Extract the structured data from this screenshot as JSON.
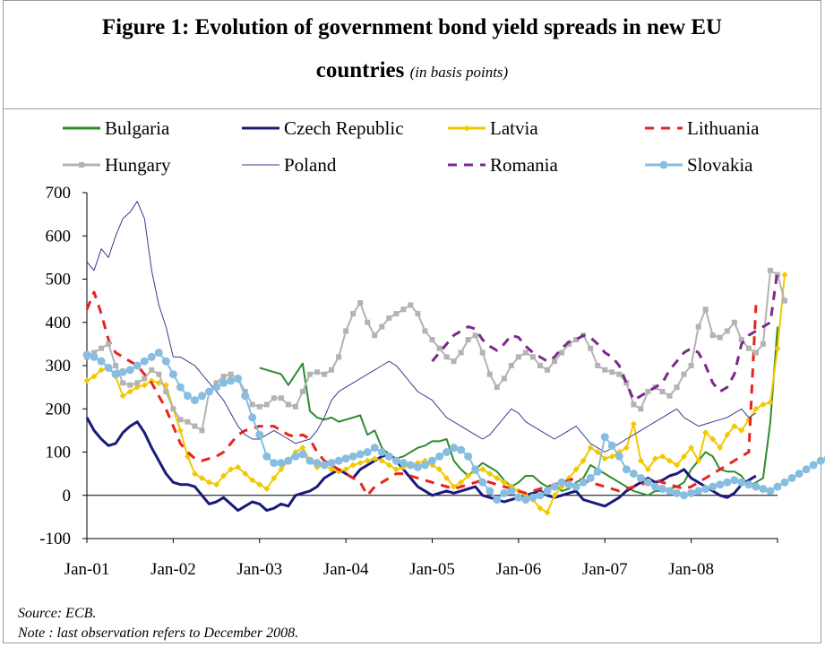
{
  "title": {
    "line1": "Figure 1: Evolution of government bond yield spreads in new EU",
    "line2_bold": "countries",
    "line2_sub": "(in basis points)"
  },
  "footnotes": {
    "source": "Source: ECB.",
    "note": "Note : last observation refers to December 2008."
  },
  "chart_data": {
    "type": "line",
    "title": "Evolution of government bond yield spreads in new EU countries",
    "ylabel": "",
    "xlabel": "",
    "ylim": [
      -100,
      700
    ],
    "yticks": [
      -100,
      0,
      100,
      200,
      300,
      400,
      500,
      600,
      700
    ],
    "x_tick_labels": [
      "Jan-01",
      "Jan-02",
      "Jan-03",
      "Jan-04",
      "Jan-05",
      "Jan-06",
      "Jan-07",
      "Jan-08"
    ],
    "x_start": "Jan-01",
    "frequency": "monthly",
    "legend_position": "top",
    "series": [
      {
        "name": "Bulgaria",
        "color": "#2e8b2e",
        "style": "solid",
        "width": 2,
        "marker": "none",
        "start_index": 24,
        "values": [
          295,
          290,
          285,
          280,
          255,
          280,
          305,
          195,
          180,
          175,
          180,
          170,
          175,
          180,
          185,
          140,
          150,
          110,
          95,
          85,
          90,
          100,
          110,
          115,
          125,
          125,
          130,
          80,
          60,
          45,
          60,
          75,
          65,
          55,
          35,
          20,
          30,
          45,
          45,
          30,
          20,
          25,
          10,
          15,
          30,
          40,
          70,
          60,
          50,
          40,
          30,
          20,
          10,
          5,
          0,
          10,
          10,
          15,
          20,
          30,
          60,
          80,
          100,
          90,
          60,
          55,
          55,
          45,
          20,
          30,
          40,
          170,
          390
        ]
      },
      {
        "name": "Czech Republic",
        "color": "#1a1a7a",
        "style": "solid",
        "width": 3,
        "marker": "none",
        "start_index": 0,
        "values": [
          180,
          150,
          130,
          115,
          120,
          145,
          160,
          170,
          145,
          110,
          80,
          50,
          30,
          25,
          25,
          20,
          0,
          -20,
          -15,
          -5,
          -20,
          -35,
          -25,
          -15,
          -20,
          -35,
          -30,
          -20,
          -25,
          0,
          5,
          10,
          20,
          40,
          50,
          60,
          50,
          40,
          60,
          70,
          80,
          90,
          95,
          80,
          60,
          40,
          20,
          10,
          0,
          5,
          10,
          5,
          10,
          15,
          20,
          0,
          -5,
          -10,
          -15,
          -10,
          -5,
          0,
          5,
          10,
          0,
          -5,
          0,
          5,
          10,
          -10,
          -15,
          -20,
          -25,
          -15,
          -5,
          10,
          20,
          30,
          40,
          30,
          35,
          45,
          50,
          60,
          40,
          30,
          20,
          10,
          0,
          -5,
          5,
          25,
          35,
          45
        ]
      },
      {
        "name": "Latvia",
        "color": "#f2c800",
        "style": "solid",
        "width": 2,
        "marker": "diamond",
        "start_index": 0,
        "values": [
          265,
          275,
          290,
          295,
          275,
          230,
          240,
          250,
          255,
          265,
          260,
          255,
          200,
          150,
          90,
          50,
          40,
          30,
          25,
          45,
          60,
          65,
          50,
          35,
          25,
          15,
          40,
          60,
          80,
          100,
          110,
          80,
          65,
          70,
          60,
          55,
          60,
          70,
          75,
          80,
          85,
          80,
          70,
          60,
          65,
          70,
          75,
          80,
          70,
          60,
          40,
          20,
          30,
          45,
          55,
          60,
          50,
          40,
          30,
          20,
          10,
          0,
          -10,
          -30,
          -40,
          0,
          20,
          40,
          60,
          80,
          110,
          100,
          85,
          90,
          100,
          110,
          165,
          80,
          60,
          85,
          90,
          80,
          70,
          90,
          110,
          80,
          145,
          130,
          110,
          140,
          160,
          150,
          175,
          200,
          210,
          215,
          340,
          510
        ]
      },
      {
        "name": "Lithuania",
        "color": "#e8231f",
        "style": "dashed",
        "width": 3,
        "marker": "none",
        "start_index": 0,
        "values": [
          430,
          470,
          420,
          360,
          330,
          320,
          310,
          300,
          280,
          260,
          230,
          200,
          160,
          120,
          100,
          85,
          80,
          85,
          90,
          100,
          120,
          140,
          150,
          155,
          160,
          160,
          160,
          150,
          140,
          135,
          140,
          130,
          100,
          80,
          70,
          60,
          50,
          40,
          30,
          0,
          20,
          30,
          40,
          50,
          50,
          45,
          40,
          35,
          30,
          25,
          20,
          15,
          20,
          25,
          30,
          35,
          30,
          25,
          20,
          15,
          10,
          5,
          10,
          15,
          20,
          25,
          30,
          35,
          40,
          35,
          30,
          25,
          20,
          15,
          10,
          15,
          20,
          25,
          30,
          35,
          30,
          25,
          20,
          15,
          20,
          30,
          40,
          50,
          60,
          70,
          80,
          90,
          100,
          440
        ]
      },
      {
        "name": "Hungary",
        "color": "#b3b3b3",
        "style": "solid",
        "width": 2,
        "marker": "square",
        "start_index": 0,
        "values": [
          320,
          330,
          340,
          350,
          300,
          260,
          255,
          260,
          270,
          290,
          280,
          240,
          200,
          175,
          170,
          160,
          150,
          240,
          260,
          275,
          280,
          270,
          240,
          210,
          205,
          210,
          225,
          225,
          210,
          205,
          240,
          280,
          285,
          280,
          290,
          320,
          380,
          420,
          445,
          400,
          370,
          390,
          410,
          420,
          430,
          440,
          420,
          380,
          360,
          340,
          320,
          310,
          330,
          360,
          370,
          330,
          280,
          250,
          270,
          300,
          320,
          330,
          320,
          300,
          290,
          310,
          330,
          350,
          360,
          370,
          340,
          300,
          290,
          285,
          280,
          260,
          210,
          200,
          240,
          250,
          240,
          230,
          250,
          280,
          300,
          390,
          430,
          370,
          365,
          380,
          400,
          360,
          340,
          330,
          350,
          520,
          510,
          450
        ]
      },
      {
        "name": "Poland",
        "color": "#3a3a8c",
        "style": "solid",
        "width": 1,
        "marker": "none",
        "start_index": 0,
        "values": [
          540,
          520,
          570,
          550,
          600,
          640,
          655,
          680,
          640,
          520,
          440,
          390,
          320,
          320,
          310,
          300,
          280,
          260,
          240,
          220,
          190,
          160,
          140,
          130,
          130,
          140,
          150,
          140,
          130,
          120,
          125,
          130,
          150,
          180,
          220,
          240,
          250,
          260,
          270,
          280,
          290,
          300,
          310,
          300,
          280,
          260,
          240,
          230,
          220,
          200,
          180,
          170,
          160,
          150,
          140,
          130,
          140,
          160,
          180,
          200,
          190,
          170,
          160,
          150,
          140,
          130,
          140,
          150,
          160,
          140,
          120,
          110,
          100,
          110,
          120,
          130,
          140,
          150,
          160,
          170,
          180,
          190,
          200,
          180,
          170,
          160,
          165,
          170,
          175,
          180,
          190,
          200,
          180,
          190
        ]
      },
      {
        "name": "Romania",
        "color": "#7a2a8a",
        "style": "dashed",
        "width": 3,
        "marker": "none",
        "start_index": 48,
        "values": [
          310,
          330,
          350,
          370,
          380,
          390,
          385,
          360,
          345,
          335,
          350,
          370,
          365,
          345,
          330,
          320,
          310,
          320,
          340,
          355,
          360,
          370,
          365,
          350,
          330,
          320,
          300,
          260,
          220,
          230,
          240,
          250,
          260,
          290,
          310,
          330,
          340,
          330,
          300,
          260,
          240,
          250,
          280,
          350,
          370,
          380,
          390,
          400,
          520
        ]
      },
      {
        "name": "Slovakia",
        "color": "#87bde0",
        "style": "solid",
        "width": 2,
        "marker": "circle",
        "start_index": 0,
        "values": [
          325,
          320,
          310,
          295,
          280,
          285,
          290,
          300,
          310,
          320,
          330,
          310,
          280,
          250,
          230,
          220,
          230,
          240,
          250,
          260,
          265,
          270,
          230,
          180,
          140,
          90,
          75,
          75,
          80,
          90,
          95,
          80,
          75,
          70,
          75,
          80,
          85,
          90,
          95,
          100,
          110,
          100,
          90,
          80,
          75,
          70,
          65,
          70,
          80,
          90,
          100,
          110,
          105,
          90,
          60,
          30,
          10,
          -10,
          5,
          10,
          -5,
          -10,
          -5,
          0,
          10,
          20,
          30,
          25,
          20,
          30,
          40,
          55,
          135,
          115,
          90,
          60,
          50,
          40,
          30,
          20,
          15,
          10,
          5,
          0,
          5,
          10,
          15,
          20,
          25,
          30,
          35,
          30,
          25,
          20,
          15,
          10,
          20,
          30,
          40,
          50,
          60,
          70,
          80,
          85
        ]
      }
    ]
  }
}
